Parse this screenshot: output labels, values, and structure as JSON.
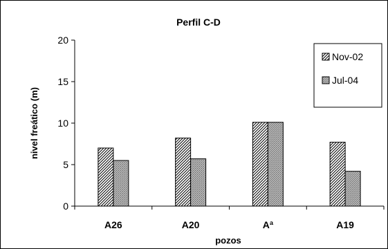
{
  "chart_data": {
    "type": "bar",
    "title": "Perfil C-D",
    "xlabel": "pozos",
    "ylabel": "nivel freático (m)",
    "categories": [
      "A26",
      "A20",
      "Aª",
      "A19"
    ],
    "series": [
      {
        "name": "Nov-02",
        "values": [
          7.0,
          8.2,
          10.1,
          7.7
        ],
        "pattern": "diagonal-hatch",
        "color": "#000000"
      },
      {
        "name": "Jul-04",
        "values": [
          5.5,
          5.7,
          10.1,
          4.2
        ],
        "pattern": "crosshatch-gray",
        "color": "#9a9a9a"
      }
    ],
    "ylim": [
      0,
      20
    ],
    "yticks": [
      0,
      5,
      10,
      15,
      20
    ],
    "grid": false,
    "legend_position": "top-right"
  }
}
